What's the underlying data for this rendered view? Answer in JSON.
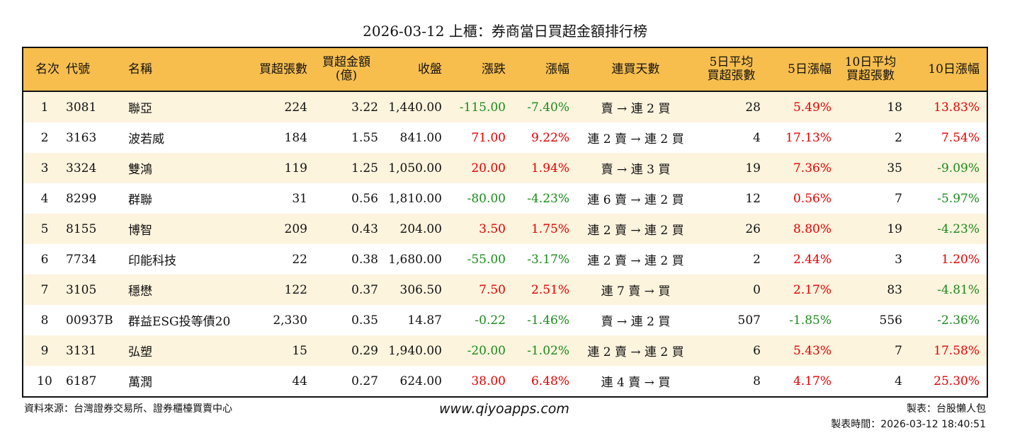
{
  "title": "2026-03-12 上櫃：券商當日買超金額排行榜",
  "colors": {
    "header_bg": "#F7BE4E",
    "row_alt_bg": "#FDF4DE",
    "up": "#e00000",
    "down": "#1a8a1a"
  },
  "columns": [
    "名次",
    "代號",
    "名稱",
    "買超張數",
    "買超金額\n(億)",
    "收盤",
    "漲跌",
    "漲幅",
    "連買天數",
    "5日平均\n買超張數",
    "5日漲幅",
    "10日平均\n買超張數",
    "10日漲幅"
  ],
  "rows": [
    [
      "1",
      "3081",
      "聯亞",
      "224",
      "3.22",
      "1,440.00",
      "-115.00",
      "-7.40%",
      "賣 → 連 2 買",
      "28",
      "5.49%",
      "18",
      "13.83%"
    ],
    [
      "2",
      "3163",
      "波若威",
      "184",
      "1.55",
      "841.00",
      "71.00",
      "9.22%",
      "連 2 賣 → 連 2 買",
      "4",
      "17.13%",
      "2",
      "7.54%"
    ],
    [
      "3",
      "3324",
      "雙鴻",
      "119",
      "1.25",
      "1,050.00",
      "20.00",
      "1.94%",
      "賣 → 連 3 買",
      "19",
      "7.36%",
      "35",
      "-9.09%"
    ],
    [
      "4",
      "8299",
      "群聯",
      "31",
      "0.56",
      "1,810.00",
      "-80.00",
      "-4.23%",
      "連 6 賣 → 連 2 買",
      "12",
      "0.56%",
      "7",
      "-5.97%"
    ],
    [
      "5",
      "8155",
      "博智",
      "209",
      "0.43",
      "204.00",
      "3.50",
      "1.75%",
      "連 2 賣 → 連 2 買",
      "26",
      "8.80%",
      "19",
      "-4.23%"
    ],
    [
      "6",
      "7734",
      "印能科技",
      "22",
      "0.38",
      "1,680.00",
      "-55.00",
      "-3.17%",
      "連 2 賣 → 連 2 買",
      "2",
      "2.44%",
      "3",
      "1.20%"
    ],
    [
      "7",
      "3105",
      "穩懋",
      "122",
      "0.37",
      "306.50",
      "7.50",
      "2.51%",
      "連 7 賣 → 買",
      "0",
      "2.17%",
      "83",
      "-4.81%"
    ],
    [
      "8",
      "00937B",
      "群益ESG投等債20",
      "2,330",
      "0.35",
      "14.87",
      "-0.22",
      "-1.46%",
      "賣 → 連 2 買",
      "507",
      "-1.85%",
      "556",
      "-2.36%"
    ],
    [
      "9",
      "3131",
      "弘塑",
      "15",
      "0.29",
      "1,940.00",
      "-20.00",
      "-1.02%",
      "連 2 賣 → 連 2 買",
      "6",
      "5.43%",
      "7",
      "17.58%"
    ],
    [
      "10",
      "6187",
      "萬潤",
      "44",
      "0.27",
      "624.00",
      "38.00",
      "6.48%",
      "連 4 賣 → 買",
      "8",
      "4.17%",
      "4",
      "25.30%"
    ]
  ],
  "footer": {
    "source": "資料來源：台灣證券交易所、證券櫃檯買賣中心",
    "site": "www.qiyoapps.com",
    "author": "製表：台股懶人包",
    "time": "製表時間：2026-03-12 18:40:51"
  }
}
